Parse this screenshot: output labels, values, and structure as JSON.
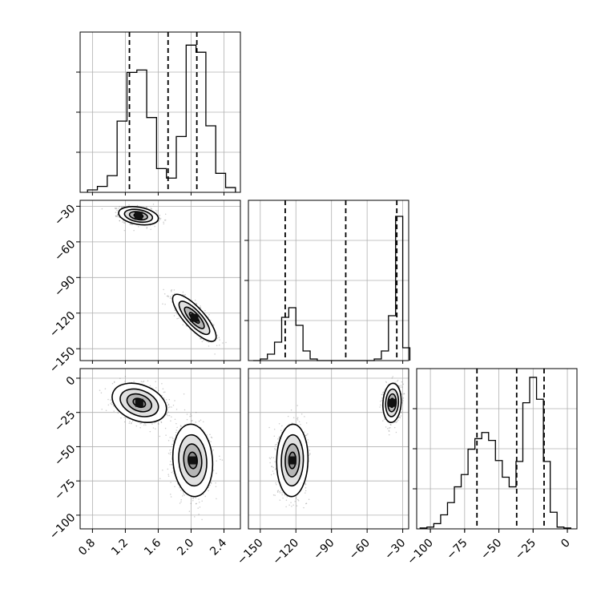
{
  "chart_data": {
    "type": "corner",
    "grid": true,
    "quantile_lines": "dashed",
    "colors": {
      "line": "#000000",
      "grid": "#b0b0b0",
      "points": "#6a6a6a",
      "fill": "#ffffff"
    },
    "parameters": [
      {
        "range": [
          0.65,
          2.6
        ],
        "ticks": [
          0.8,
          1.2,
          1.6,
          2.0,
          2.4
        ],
        "tick_labels": [
          "0.8",
          "1.2",
          "1.6",
          "2.0",
          "2.4"
        ]
      },
      {
        "range": [
          -160,
          -25
        ],
        "ticks": [
          -150,
          -120,
          -90,
          -60,
          -30
        ],
        "tick_labels": [
          "−150",
          "−120",
          "−90",
          "−60",
          "−30"
        ]
      },
      {
        "range": [
          -110,
          7
        ],
        "ticks": [
          -100,
          -75,
          -50,
          -25,
          0
        ],
        "tick_labels": [
          "−100",
          "−75",
          "−50",
          "−25",
          "0"
        ]
      }
    ],
    "histograms": [
      {
        "param": 0,
        "edges": [
          0.74,
          0.86,
          0.98,
          1.1,
          1.22,
          1.34,
          1.46,
          1.58,
          1.7,
          1.82,
          1.94,
          2.06,
          2.18,
          2.3,
          2.42,
          2.54
        ],
        "counts": [
          2,
          5,
          14,
          60,
          101,
          103,
          63,
          20,
          12,
          47,
          124,
          118,
          56,
          16,
          4
        ],
        "ymax": 135,
        "quantiles": [
          1.25,
          1.72,
          2.07
        ]
      },
      {
        "param": 1,
        "edges": [
          -156,
          -150,
          -144,
          -138,
          -132,
          -126,
          -120,
          -114,
          -108,
          -102,
          -96,
          -90,
          -84,
          -78,
          -72,
          -66,
          -60,
          -54,
          -48,
          -42,
          -36,
          -30,
          -24
        ],
        "counts": [
          0,
          2,
          8,
          23,
          54,
          66,
          44,
          12,
          2,
          0,
          0,
          0,
          0,
          0,
          0,
          0,
          0,
          2,
          12,
          56,
          180,
          16
        ],
        "ymax": 200,
        "quantiles": [
          -129,
          -78,
          -35
        ]
      },
      {
        "param": 2,
        "edges": [
          -107.5,
          -102.5,
          -97.5,
          -92.5,
          -87.5,
          -82.5,
          -77.5,
          -72.5,
          -67.5,
          -62.5,
          -57.5,
          -52.5,
          -47.5,
          -42.5,
          -37.5,
          -32.5,
          -27.5,
          -22.5,
          -17.5,
          -12.5,
          -7.5,
          -2.5,
          2.5
        ],
        "counts": [
          1,
          2,
          6,
          16,
          30,
          48,
          62,
          91,
          103,
          110,
          101,
          78,
          59,
          48,
          77,
          144,
          173,
          148,
          77,
          19,
          2,
          1
        ],
        "ymax": 183,
        "quantiles": [
          -66,
          -37,
          -17
        ]
      }
    ],
    "scatter_panels": [
      {
        "x_param": 0,
        "y_param": 1,
        "clusters": [
          {
            "cx": 1.36,
            "cy": -38,
            "sx": 0.11,
            "sy": 3.5,
            "rho": -0.3,
            "n": 900
          },
          {
            "cx": 2.04,
            "cy": -124,
            "sx": 0.12,
            "sy": 9,
            "rho": -0.8,
            "n": 900
          }
        ]
      },
      {
        "x_param": 0,
        "y_param": 2,
        "clusters": [
          {
            "cx": 1.37,
            "cy": -18,
            "sx": 0.15,
            "sy": 6.5,
            "rho": -0.3,
            "n": 1100
          },
          {
            "cx": 2.02,
            "cy": -60,
            "sx": 0.11,
            "sy": 12,
            "rho": -0.1,
            "n": 1100
          }
        ]
      },
      {
        "x_param": 1,
        "y_param": 2,
        "clusters": [
          {
            "cx": -123,
            "cy": -60,
            "sx": 6,
            "sy": 12,
            "rho": 0.05,
            "n": 1100
          },
          {
            "cx": -39,
            "cy": -18,
            "sx": 3.5,
            "sy": 6.5,
            "rho": 0.1,
            "n": 1000
          }
        ]
      }
    ]
  }
}
